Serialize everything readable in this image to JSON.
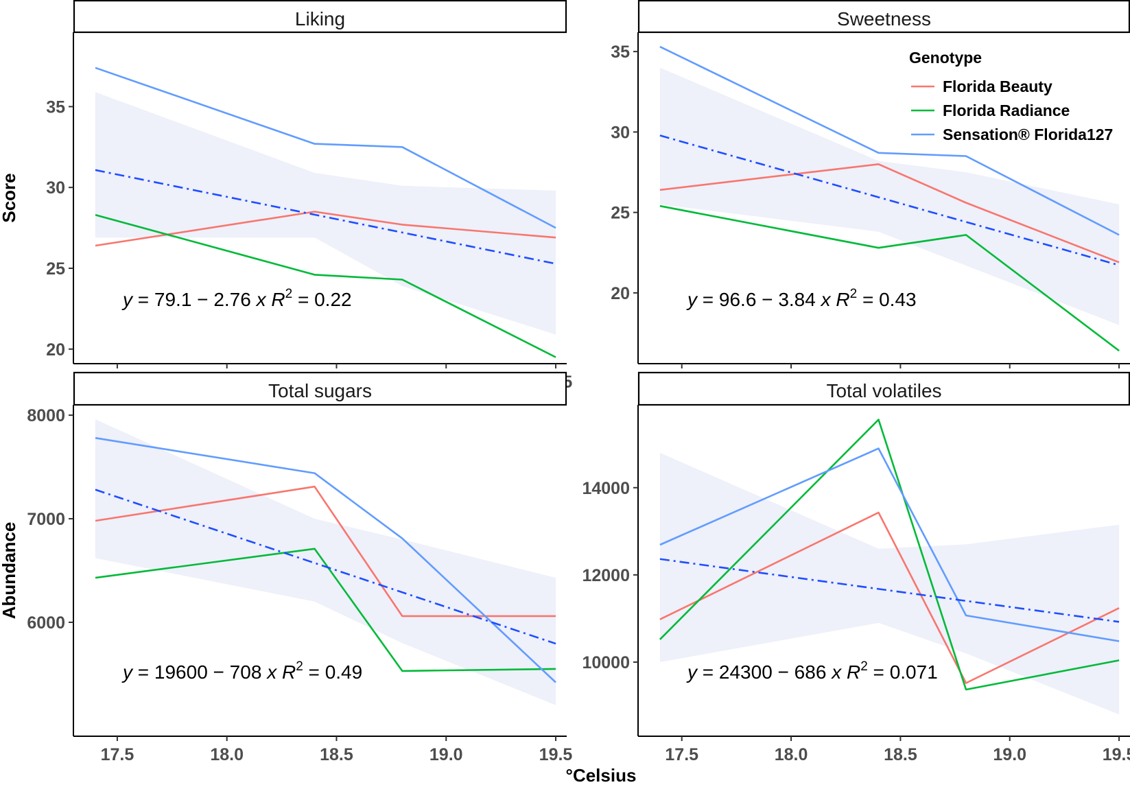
{
  "chart_data": {
    "type": "line",
    "x_axis_title": "°Celsius",
    "x_ticks": [
      17.5,
      18.0,
      18.5,
      19.0,
      19.5
    ],
    "x_tick_labels": [
      "17.5",
      "18.0",
      "18.5",
      "19.0",
      "19.5"
    ],
    "xlim": [
      17.3,
      19.55
    ],
    "legend": {
      "title": "Genotype",
      "position": "top-right",
      "entries": [
        {
          "label": "Florida Beauty",
          "color": "#F8766D"
        },
        {
          "label": "Florida Radiance",
          "color": "#00BA38"
        },
        {
          "label": "Sensation® Florida127",
          "color": "#619CFF"
        }
      ]
    },
    "fit_color": "#1F4EFF",
    "ribbon_color": "#EEF0FA",
    "panels": [
      {
        "title": "Liking",
        "ylabel": "Score",
        "ylim": [
          19.1,
          39.6
        ],
        "y_ticks": [
          20,
          25,
          30,
          35
        ],
        "y_tick_labels": [
          "20",
          "25",
          "30",
          "35"
        ],
        "x": [
          17.4,
          18.4,
          18.8,
          19.5
        ],
        "series": [
          {
            "name": "Florida Beauty",
            "values": [
              26.4,
              28.5,
              27.7,
              26.9
            ]
          },
          {
            "name": "Florida Radiance",
            "values": [
              28.3,
              24.6,
              24.3,
              19.5
            ]
          },
          {
            "name": "Sensation® Florida127",
            "values": [
              37.4,
              32.7,
              32.5,
              27.5
            ]
          }
        ],
        "fit": {
          "intercept": 79.1,
          "slope": -2.76
        },
        "ribbon": {
          "x": [
            17.4,
            18.4,
            18.8,
            19.5
          ],
          "lower": [
            26.9,
            26.9,
            23.9,
            20.9
          ],
          "upper": [
            35.9,
            30.9,
            30.1,
            29.8
          ]
        },
        "equation": {
          "y": "y",
          "lhs": " = 79.1 − 2.76 ",
          "x": "x",
          "r": "R",
          "sup": "2",
          "rhs": " = 0.22"
        }
      },
      {
        "title": "Sweetness",
        "ylabel": "",
        "ylim": [
          15.6,
          36.2
        ],
        "y_ticks": [
          20,
          25,
          30,
          35
        ],
        "y_tick_labels": [
          "20",
          "25",
          "30",
          "35"
        ],
        "x": [
          17.4,
          18.4,
          18.8,
          19.5
        ],
        "series": [
          {
            "name": "Florida Beauty",
            "values": [
              26.4,
              28.0,
              25.6,
              21.9
            ]
          },
          {
            "name": "Florida Radiance",
            "values": [
              25.4,
              22.8,
              23.6,
              16.4
            ]
          },
          {
            "name": "Sensation® Florida127",
            "values": [
              35.3,
              28.7,
              28.5,
              23.6
            ]
          }
        ],
        "fit": {
          "intercept": 96.6,
          "slope": -3.84
        },
        "ribbon": {
          "x": [
            17.4,
            18.4,
            18.8,
            19.5
          ],
          "lower": [
            25.5,
            23.8,
            21.7,
            18.0
          ],
          "upper": [
            34.0,
            28.2,
            27.5,
            25.5
          ]
        },
        "equation": {
          "y": "y",
          "lhs": " = 96.6 − 3.84 ",
          "x": "x",
          "r": "R",
          "sup": "2",
          "rhs": " = 0.43"
        }
      },
      {
        "title": "Total sugars",
        "ylabel": "Abundance",
        "ylim": [
          4900,
          8100
        ],
        "y_ticks": [
          6000,
          7000,
          8000
        ],
        "y_tick_labels": [
          "6000",
          "7000",
          "8000"
        ],
        "x": [
          17.4,
          18.4,
          18.8,
          19.5
        ],
        "series": [
          {
            "name": "Florida Beauty",
            "values": [
              6980,
              7310,
              6060,
              6060
            ]
          },
          {
            "name": "Florida Radiance",
            "values": [
              6430,
              6710,
              5530,
              5550
            ]
          },
          {
            "name": "Sensation® Florida127",
            "values": [
              7780,
              7440,
              6810,
              5420
            ]
          }
        ],
        "fit": {
          "intercept": 19600,
          "slope": -708
        },
        "ribbon": {
          "x": [
            17.4,
            18.4,
            18.8,
            19.5
          ],
          "lower": [
            6620,
            6200,
            5800,
            5200
          ],
          "upper": [
            7960,
            7000,
            6800,
            6430
          ]
        },
        "equation": {
          "y": "y",
          "lhs": " = 19600 − 708 ",
          "x": "x",
          "r": "R",
          "sup": "2",
          "rhs": " = 0.49"
        }
      },
      {
        "title": "Total volatiles",
        "ylabel": "",
        "ylim": [
          8300,
          15900
        ],
        "y_ticks": [
          10000,
          12000,
          14000
        ],
        "y_tick_labels": [
          "10000",
          "12000",
          "14000"
        ],
        "x": [
          17.4,
          18.4,
          18.8,
          19.5
        ],
        "series": [
          {
            "name": "Florida Beauty",
            "values": [
              10980,
              13430,
              9520,
              11240
            ]
          },
          {
            "name": "Florida Radiance",
            "values": [
              10520,
              15560,
              9370,
              10040
            ]
          },
          {
            "name": "Sensation® Florida127",
            "values": [
              12690,
              14900,
              11070,
              10480
            ]
          }
        ],
        "fit": {
          "intercept": 24300,
          "slope": -686
        },
        "ribbon": {
          "x": [
            17.4,
            18.4,
            18.8,
            19.5
          ],
          "lower": [
            10000,
            10900,
            10200,
            8800
          ],
          "upper": [
            14800,
            12600,
            12700,
            13150
          ]
        },
        "equation": {
          "y": "y",
          "lhs": " = 24300 − 686 ",
          "x": "x",
          "r": "R",
          "sup": "2",
          "rhs": " = 0.071"
        }
      }
    ]
  }
}
